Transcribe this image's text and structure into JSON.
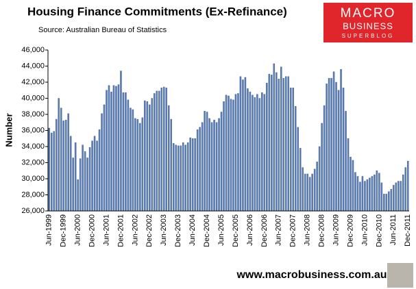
{
  "chart_data": {
    "type": "bar",
    "title": "Housing Finance Commitments (Ex-Refinance)",
    "subtitle": "Source: Australian Bureau of Statistics",
    "y_label": "Number",
    "footer": "www.macrobusiness.com.au",
    "logo": {
      "line1": "MACRO",
      "line2": "BUSINESS",
      "line3": "SUPERBLOG"
    },
    "color": "#5a7db5",
    "categories": [
      "Jun-1999",
      null,
      null,
      null,
      null,
      null,
      "Dec-1999",
      null,
      null,
      null,
      null,
      null,
      "Jun-2000",
      null,
      null,
      null,
      null,
      null,
      "Dec-2000",
      null,
      null,
      null,
      null,
      null,
      "Jun-2001",
      null,
      null,
      null,
      null,
      null,
      "Dec-2001",
      null,
      null,
      null,
      null,
      null,
      "Jun-2002",
      null,
      null,
      null,
      null,
      null,
      "Dec-2002",
      null,
      null,
      null,
      null,
      null,
      "Jun-2003",
      null,
      null,
      null,
      null,
      null,
      "Dec-2003",
      null,
      null,
      null,
      null,
      null,
      "Jun-2004",
      null,
      null,
      null,
      null,
      null,
      "Dec-2004",
      null,
      null,
      null,
      null,
      null,
      "Jun-2005",
      null,
      null,
      null,
      null,
      null,
      "Dec-2005",
      null,
      null,
      null,
      null,
      null,
      "Jun-2006",
      null,
      null,
      null,
      null,
      null,
      "Dec-2006",
      null,
      null,
      null,
      null,
      null,
      "Jun-2007",
      null,
      null,
      null,
      null,
      null,
      "Dec-2007",
      null,
      null,
      null,
      null,
      null,
      "Jun-2008",
      null,
      null,
      null,
      null,
      null,
      "Dec-2008",
      null,
      null,
      null,
      null,
      null,
      "Jun-2009",
      null,
      null,
      null,
      null,
      null,
      "Dec-2009",
      null,
      null,
      null,
      null,
      null,
      "Jun-2010",
      null,
      null,
      null,
      null,
      null,
      "Dec-2010",
      null,
      null,
      null,
      null,
      null,
      "Jun-2011",
      null,
      null,
      null,
      null,
      null,
      "Dec-2011"
    ],
    "values": [
      36300,
      35700,
      35900,
      37400,
      40000,
      38800,
      37200,
      37300,
      38100,
      35300,
      32600,
      34500,
      29900,
      32500,
      34200,
      33400,
      32600,
      33900,
      34700,
      35300,
      34700,
      36100,
      38100,
      39200,
      41000,
      41600,
      40800,
      41600,
      41500,
      41700,
      43400,
      40700,
      40700,
      39800,
      38800,
      38600,
      37500,
      37400,
      36900,
      37600,
      39700,
      39600,
      39200,
      40000,
      40600,
      40900,
      40900,
      41300,
      41400,
      41300,
      39100,
      37400,
      34400,
      34200,
      34100,
      34100,
      34500,
      34200,
      34500,
      35100,
      35000,
      35000,
      36100,
      36400,
      37000,
      38400,
      38300,
      37500,
      37000,
      37300,
      37000,
      37500,
      38300,
      39600,
      40400,
      40300,
      39900,
      39800,
      40500,
      40600,
      42700,
      42300,
      42600,
      41200,
      40800,
      40400,
      40100,
      40500,
      40000,
      40700,
      40500,
      41900,
      43000,
      42900,
      44300,
      43200,
      42400,
      43900,
      42500,
      42700,
      42700,
      41300,
      41300,
      39000,
      36400,
      33800,
      31400,
      30600,
      30600,
      30200,
      30600,
      31200,
      32100,
      34000,
      36900,
      39100,
      41800,
      42500,
      42500,
      43300,
      42000,
      41000,
      43600,
      41300,
      38400,
      35000,
      32700,
      32300,
      30800,
      30300,
      29600,
      30300,
      29700,
      29900,
      30100,
      30300,
      30500,
      31000,
      30700,
      29500,
      28100,
      28100,
      28400,
      28700,
      29200,
      29500,
      29700,
      29700,
      30500,
      31400,
      32200
    ],
    "ylim": [
      26000,
      46000
    ],
    "yticks": [
      {
        "value": 26000,
        "label": "26,000"
      },
      {
        "value": 28000,
        "label": "28,000"
      },
      {
        "value": 30000,
        "label": "30,000"
      },
      {
        "value": 32000,
        "label": "32,000"
      },
      {
        "value": 34000,
        "label": "34,000"
      },
      {
        "value": 36000,
        "label": "36,000"
      },
      {
        "value": 38000,
        "label": "38,000"
      },
      {
        "value": 40000,
        "label": "40,000"
      },
      {
        "value": 42000,
        "label": "42,000"
      },
      {
        "value": 44000,
        "label": "44,000"
      },
      {
        "value": 46000,
        "label": "46,000"
      }
    ],
    "grid": false
  }
}
